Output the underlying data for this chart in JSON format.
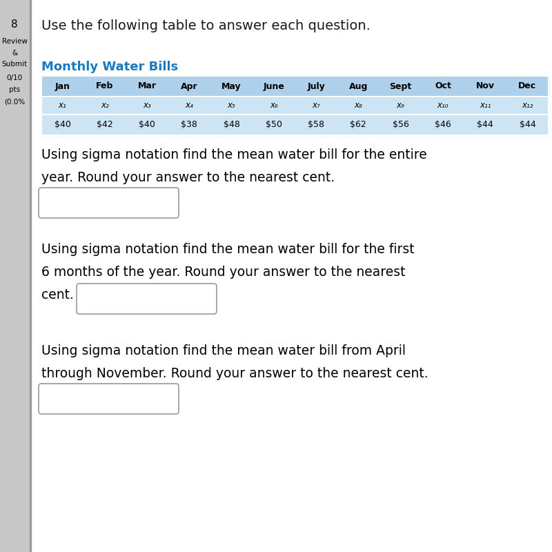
{
  "title": "Use the following table to answer each question.",
  "table_title": "Monthly Water Bills",
  "table_title_color": "#1a7abf",
  "months": [
    "Jan",
    "Feb",
    "Mar",
    "Apr",
    "May",
    "June",
    "July",
    "Aug",
    "Sept",
    "Oct",
    "Nov",
    "Dec"
  ],
  "x_labels": [
    "x₁",
    "x₂",
    "x₃",
    "x₄",
    "x₅",
    "x₆",
    "x₇",
    "x₈",
    "x₉",
    "x₁₀",
    "x₁₁",
    "x₁₂"
  ],
  "values": [
    "$40",
    "$42",
    "$40",
    "$38",
    "$48",
    "$50",
    "$58",
    "$62",
    "$56",
    "$46",
    "$44",
    "$44"
  ],
  "table_bg_color": "#cde4f5",
  "table_header_bg": "#aed0ea",
  "q1_line1": "Using sigma notation find the mean water bill for the entire",
  "q1_line2": "year. Round your answer to the nearest cent.",
  "q2_line1": "Using sigma notation find the mean water bill for the first",
  "q2_line2": "6 months of the year. Round your answer to the nearest",
  "q2_line3": "cent.",
  "q3_line1": "Using sigma notation find the mean water bill from April",
  "q3_line2": "through November. Round your answer to the nearest cent.",
  "sidebar_bg": "#c8c8c8",
  "sidebar_line_color": "#999999",
  "page_num": "8",
  "sidebar_items": [
    "Review",
    "&",
    "Submit",
    "0/10",
    "pts",
    "(0.0%"
  ],
  "bg_color": "#ffffff",
  "text_color": "#1a1a1a",
  "box_edge_color": "#999999"
}
